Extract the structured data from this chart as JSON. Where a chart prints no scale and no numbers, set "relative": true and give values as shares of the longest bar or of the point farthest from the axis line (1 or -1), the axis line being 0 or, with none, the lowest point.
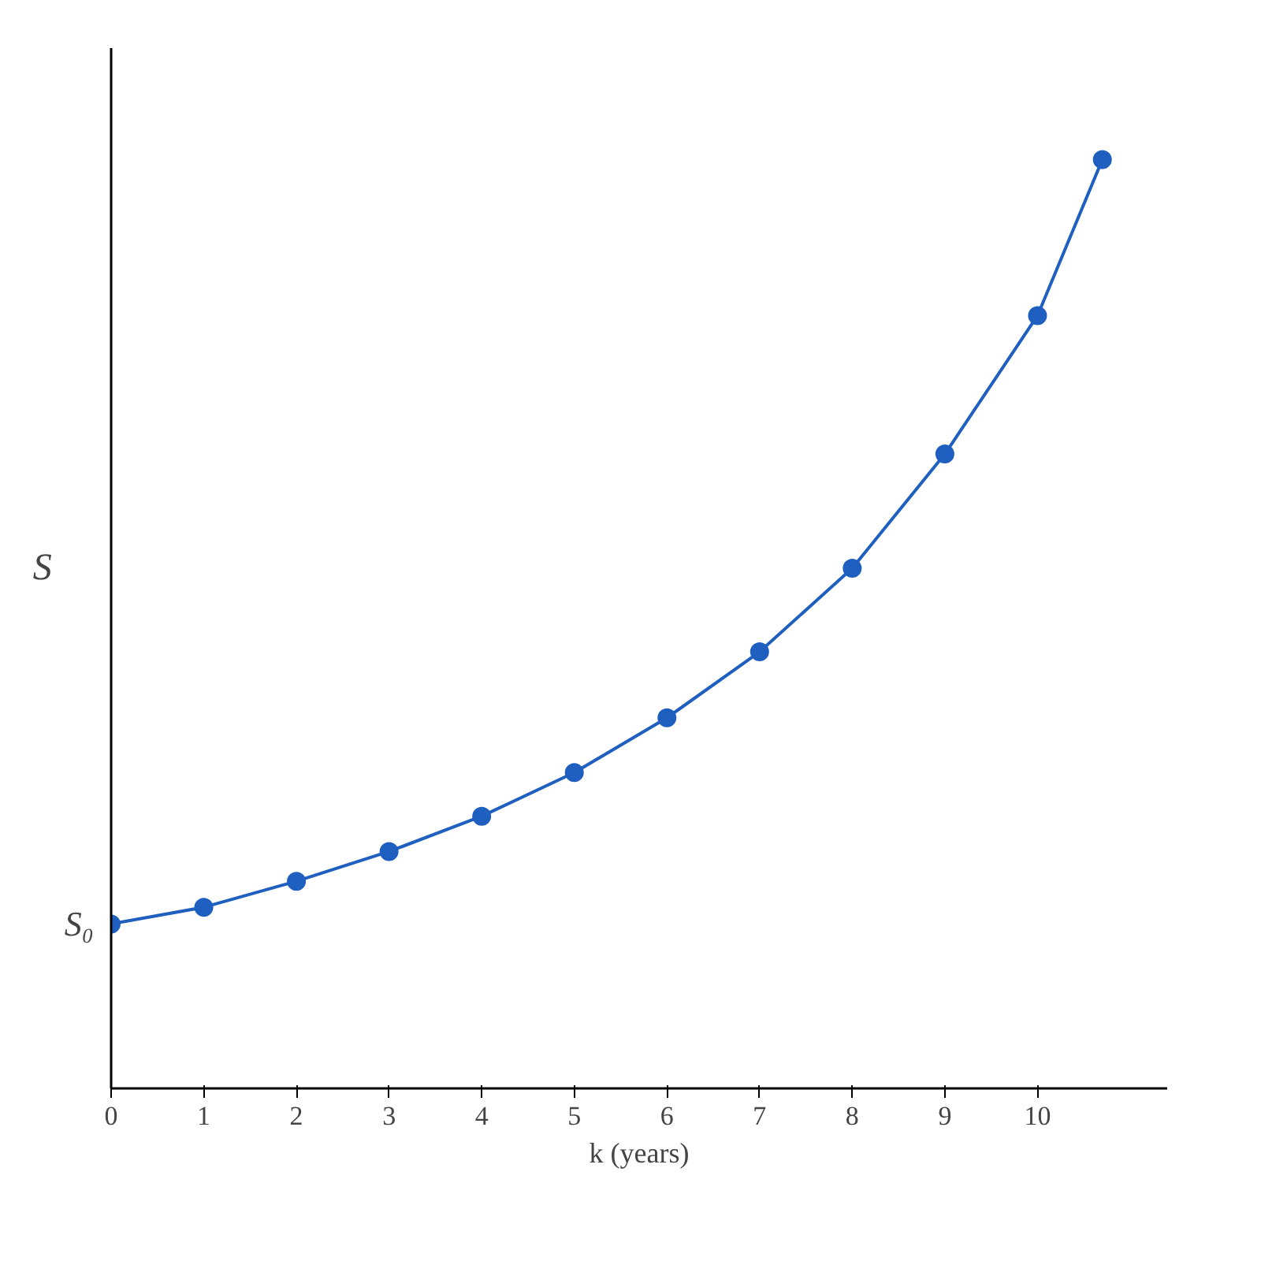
{
  "chart_data": {
    "type": "line",
    "xlabel": "k (years)",
    "ylabel": "S",
    "relative": true,
    "marker": "circle",
    "line_style": "solid",
    "grid": false,
    "x": [
      0,
      1,
      2,
      3,
      4,
      5,
      6,
      7,
      8,
      9,
      10,
      10.7
    ],
    "xlim": [
      0,
      11.4
    ],
    "xticks": [
      0,
      1,
      2,
      3,
      4,
      5,
      6,
      7,
      8,
      9,
      10
    ],
    "series": [
      {
        "color": "#1f5fbf",
        "values": [
          0.177,
          0.195,
          0.223,
          0.255,
          0.293,
          0.34,
          0.399,
          0.47,
          0.56,
          0.683,
          0.832,
          1.0
        ]
      }
    ],
    "annotations": [
      {
        "text": "S₀",
        "x": 0,
        "y": 0.177
      }
    ]
  }
}
